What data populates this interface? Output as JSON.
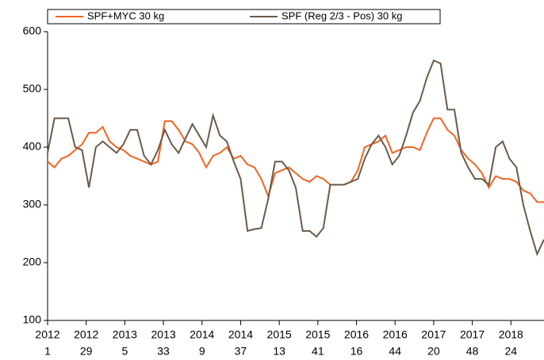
{
  "chart_data": {
    "type": "line",
    "x": [
      0,
      5,
      10,
      15,
      20,
      25,
      30,
      35,
      40,
      45,
      50,
      55,
      60,
      65,
      70,
      75,
      80,
      85,
      90,
      95,
      100,
      105,
      110,
      115,
      120,
      125,
      130,
      135,
      140,
      145,
      150,
      155,
      160,
      165,
      170,
      175,
      180,
      185,
      190,
      195,
      200,
      205,
      210,
      215,
      220,
      225,
      230,
      235,
      240,
      245,
      250,
      255,
      260,
      265,
      270,
      275,
      280,
      285,
      290,
      295,
      300,
      305,
      310,
      315,
      320,
      325,
      330,
      335,
      340,
      345,
      350,
      355,
      360
    ],
    "series": [
      {
        "name": "SPF+MYC 30 kg",
        "color": "#f26522",
        "values": [
          375,
          365,
          380,
          385,
          395,
          405,
          425,
          425,
          435,
          410,
          400,
          395,
          385,
          380,
          375,
          370,
          375,
          445,
          445,
          430,
          410,
          405,
          390,
          365,
          385,
          390,
          400,
          380,
          385,
          370,
          365,
          345,
          315,
          355,
          360,
          365,
          355,
          345,
          340,
          350,
          345,
          335,
          335,
          335,
          340,
          360,
          400,
          405,
          410,
          420,
          390,
          395,
          400,
          400,
          395,
          425,
          450,
          450,
          430,
          420,
          395,
          380,
          370,
          355,
          330,
          350,
          345,
          345,
          340,
          325,
          320,
          305,
          305
        ]
      },
      {
        "name": "SPF (Reg 2/3 - Pos) 30 kg",
        "color": "#6b5a48",
        "values": [
          390,
          450,
          450,
          450,
          400,
          395,
          330,
          400,
          410,
          400,
          390,
          405,
          430,
          430,
          385,
          370,
          395,
          430,
          405,
          390,
          415,
          440,
          420,
          400,
          455,
          420,
          410,
          375,
          345,
          255,
          258,
          260,
          310,
          375,
          375,
          360,
          330,
          255,
          255,
          245,
          260,
          335,
          335,
          335,
          340,
          345,
          380,
          405,
          420,
          400,
          370,
          385,
          420,
          460,
          480,
          520,
          550,
          545,
          465,
          465,
          390,
          365,
          345,
          345,
          335,
          400,
          410,
          380,
          365,
          300,
          255,
          215,
          240
        ]
      }
    ],
    "xlim": [
      0,
      360
    ],
    "xticks": [
      {
        "value": 0,
        "label": [
          "2012",
          "1"
        ]
      },
      {
        "value": 28,
        "label": [
          "2012",
          "29"
        ]
      },
      {
        "value": 56,
        "label": [
          "2013",
          "5"
        ]
      },
      {
        "value": 84,
        "label": [
          "2013",
          "33"
        ]
      },
      {
        "value": 112,
        "label": [
          "2014",
          "9"
        ]
      },
      {
        "value": 140,
        "label": [
          "2014",
          "37"
        ]
      },
      {
        "value": 168,
        "label": [
          "2015",
          "13"
        ]
      },
      {
        "value": 196,
        "label": [
          "2015",
          "41"
        ]
      },
      {
        "value": 224,
        "label": [
          "2016",
          "16"
        ]
      },
      {
        "value": 252,
        "label": [
          "2016",
          "44"
        ]
      },
      {
        "value": 280,
        "label": [
          "2017",
          "20"
        ]
      },
      {
        "value": 308,
        "label": [
          "2017",
          "48"
        ]
      },
      {
        "value": 336,
        "label": [
          "2018",
          "24"
        ]
      }
    ],
    "ylim": [
      100,
      600
    ],
    "yticks": [
      100,
      200,
      300,
      400,
      500,
      600
    ]
  }
}
